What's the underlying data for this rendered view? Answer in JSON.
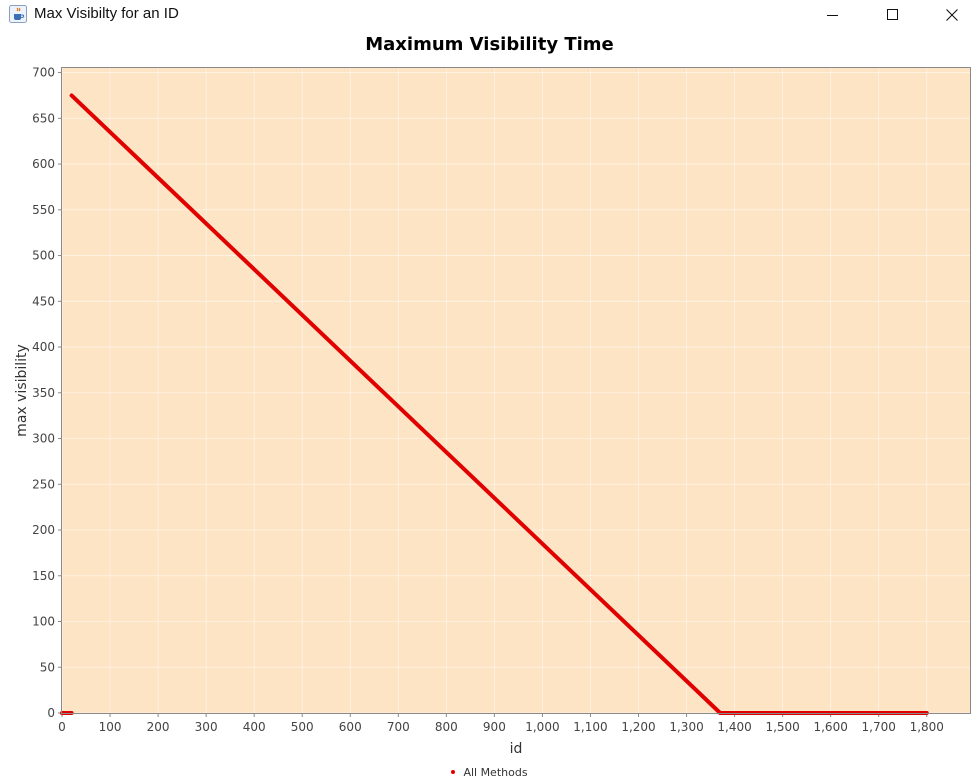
{
  "window": {
    "title": "Max Visibilty for an ID",
    "icon": "java-cup-icon",
    "controls": [
      "minimize",
      "maximize",
      "close"
    ]
  },
  "chart_data": {
    "type": "line",
    "title": "Maximum Visibility Time",
    "xlabel": "id",
    "ylabel": "max visibility",
    "xlim": [
      0,
      1890
    ],
    "ylim": [
      0,
      705
    ],
    "x_ticks": [
      0,
      100,
      200,
      300,
      400,
      500,
      600,
      700,
      800,
      900,
      1000,
      1100,
      1200,
      1300,
      1400,
      1500,
      1600,
      1700,
      1800
    ],
    "x_tick_labels": [
      "0",
      "100",
      "200",
      "300",
      "400",
      "500",
      "600",
      "700",
      "800",
      "900",
      "1,000",
      "1,100",
      "1,200",
      "1,300",
      "1,400",
      "1,500",
      "1,600",
      "1,700",
      "1,800"
    ],
    "y_ticks": [
      0,
      50,
      100,
      150,
      200,
      250,
      300,
      350,
      400,
      450,
      500,
      550,
      600,
      650,
      700
    ],
    "y_tick_labels": [
      "0",
      "50",
      "100",
      "150",
      "200",
      "250",
      "300",
      "350",
      "400",
      "450",
      "500",
      "550",
      "600",
      "650",
      "700"
    ],
    "grid": true,
    "legend_position": "bottom-center",
    "plot_background": "#fde4c5",
    "series": [
      {
        "name": "All Methods",
        "color": "#e00000",
        "segments": [
          {
            "x": [
              0,
              20
            ],
            "y": [
              0,
              0
            ]
          },
          {
            "x": [
              20,
              1370
            ],
            "y": [
              675,
              0
            ]
          },
          {
            "x": [
              1370,
              1800
            ],
            "y": [
              0,
              0
            ]
          }
        ]
      }
    ]
  }
}
